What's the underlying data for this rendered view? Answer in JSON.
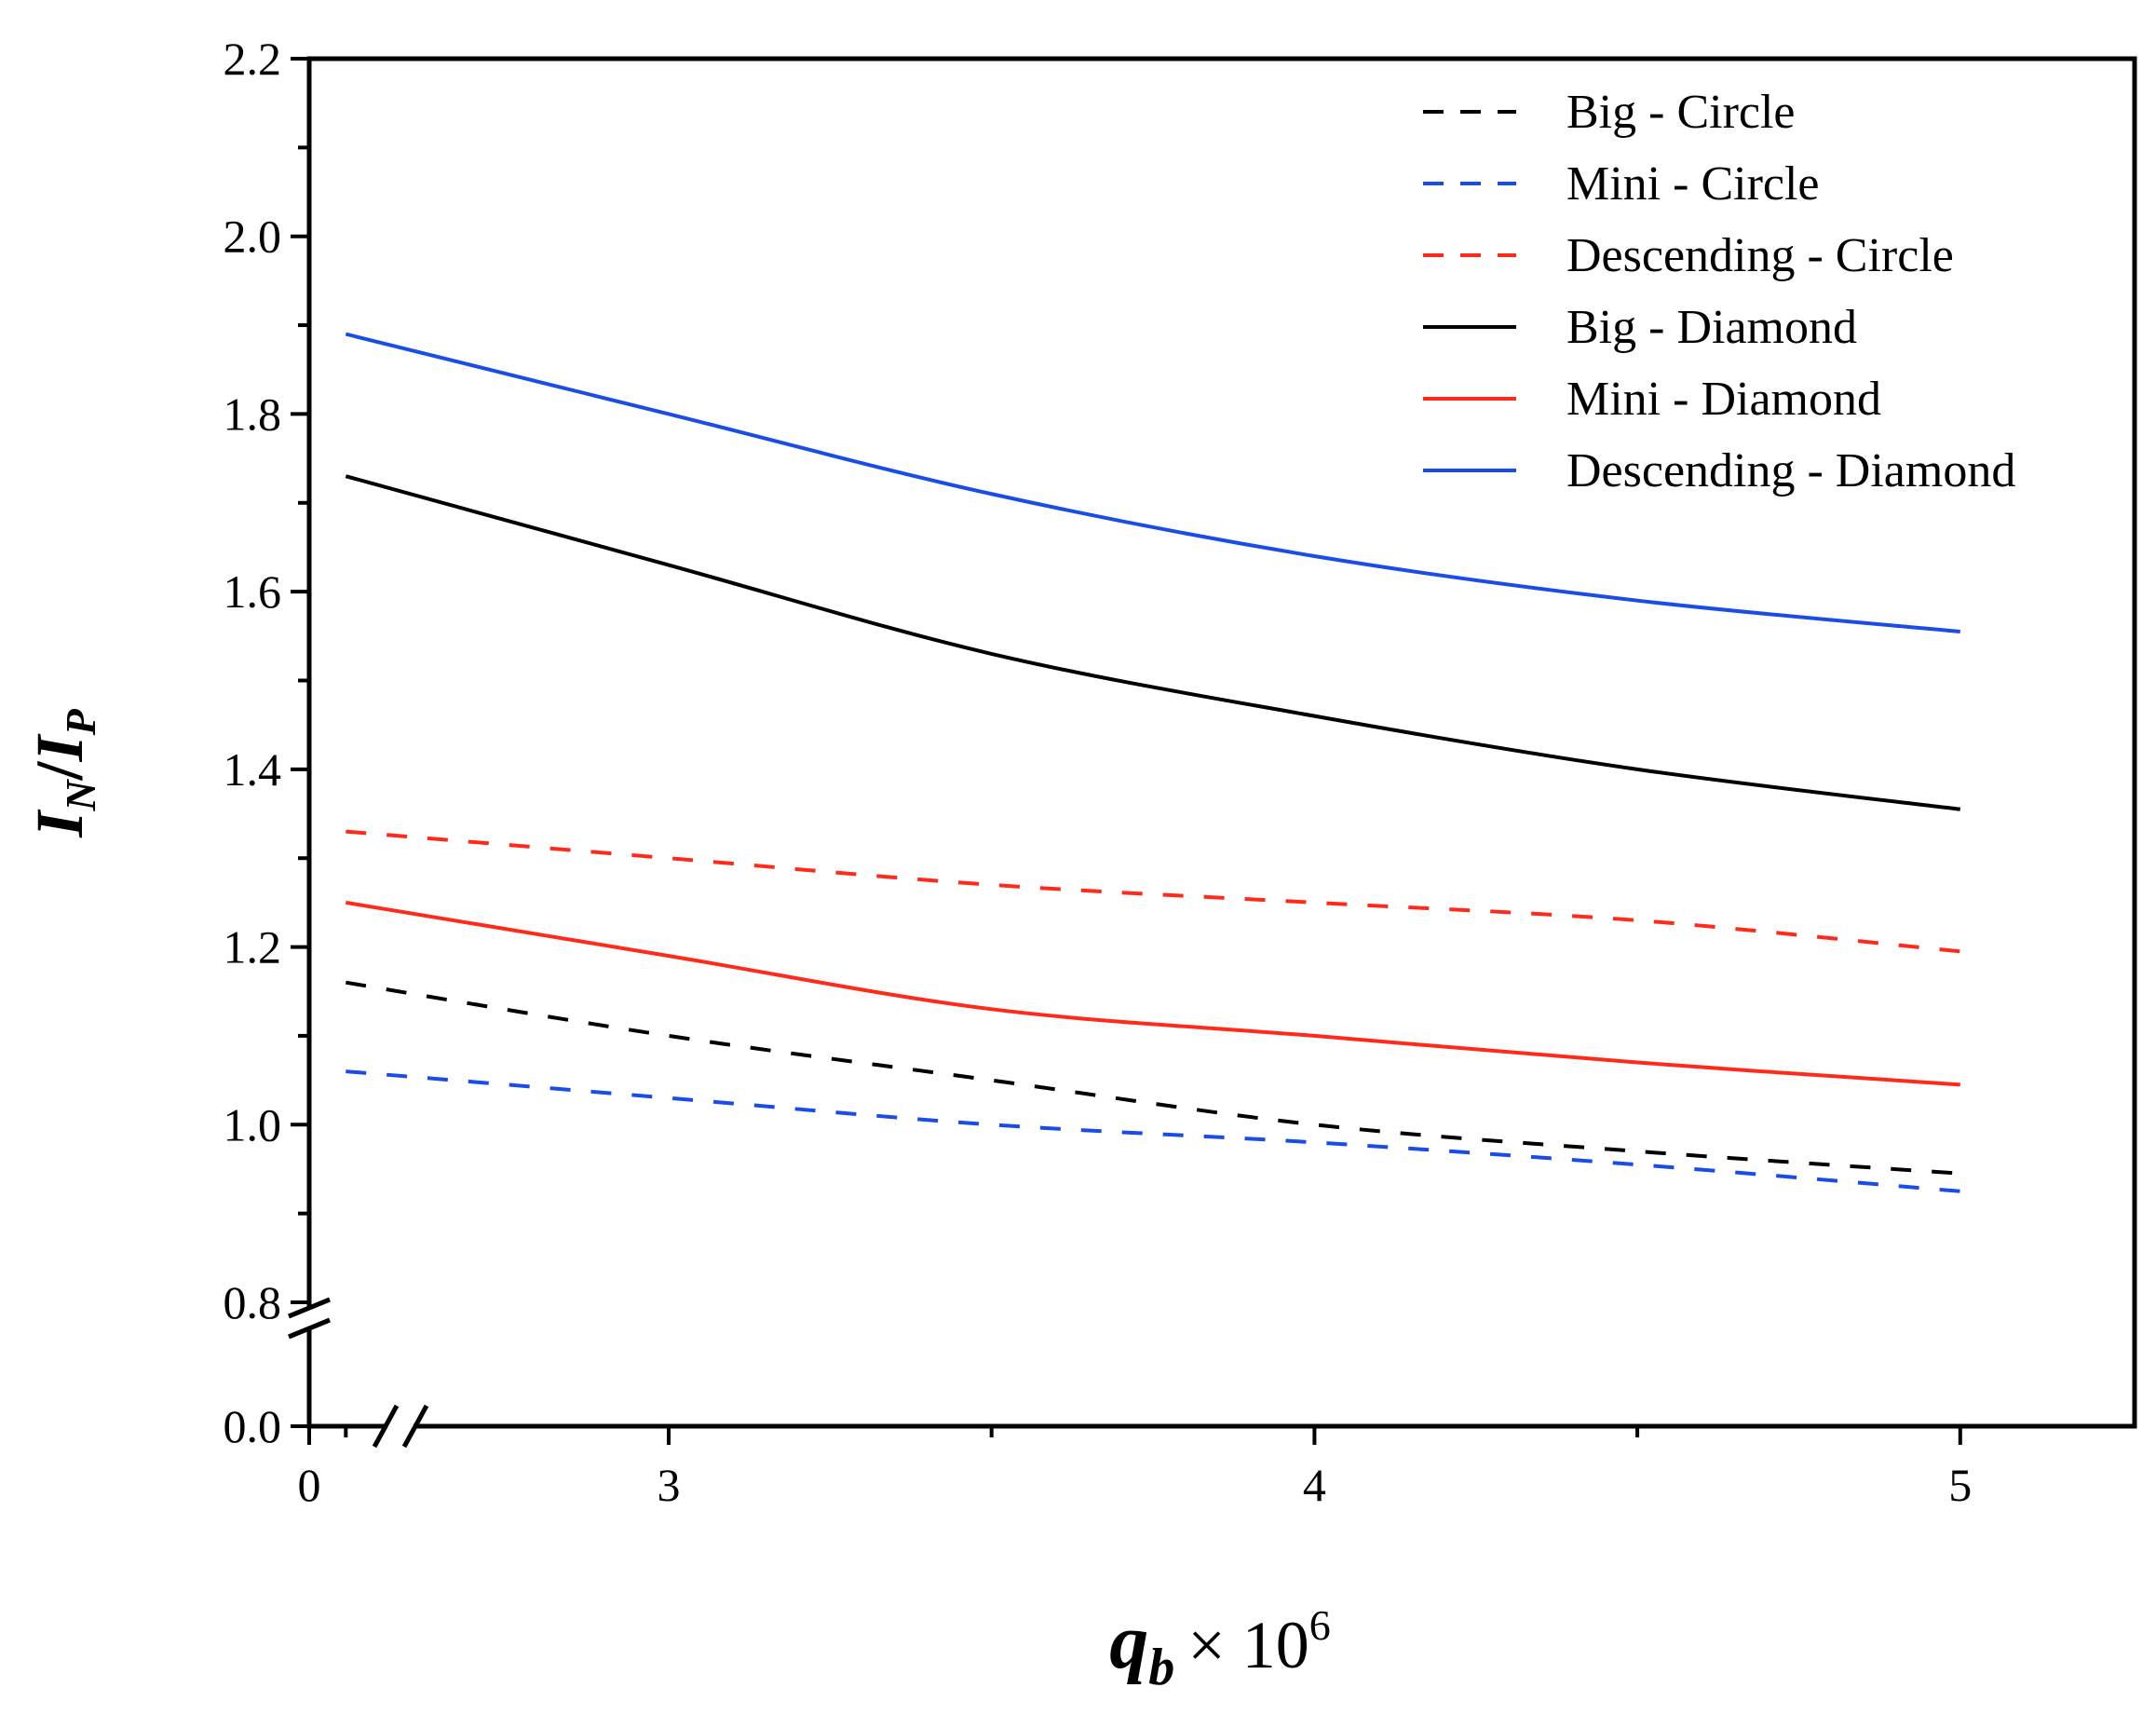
{
  "chart_data": {
    "type": "line",
    "title": "",
    "xlabel": {
      "main": "q",
      "sub": "b",
      "suffix": "× 10",
      "exp": "6"
    },
    "ylabel": {
      "i1": "I",
      "s1": "N",
      "slash": "/",
      "i2": "I",
      "s2": "P"
    },
    "xlim": [
      2.7,
      5.27
    ],
    "ylim_upper": [
      0.8,
      2.2
    ],
    "ylim_lower": [
      0.0,
      0.8
    ],
    "x_ticks": [
      {
        "value": 0,
        "label": "0"
      },
      {
        "value": 3,
        "label": "3"
      },
      {
        "value": 4,
        "label": "4"
      },
      {
        "value": 5,
        "label": "5"
      }
    ],
    "y_ticks": [
      {
        "value": 0.0,
        "label": "0.0"
      },
      {
        "value": 0.8,
        "label": "0.8"
      },
      {
        "value": 1.0,
        "label": "1.0"
      },
      {
        "value": 1.2,
        "label": "1.2"
      },
      {
        "value": 1.4,
        "label": "1.4"
      },
      {
        "value": 1.6,
        "label": "1.6"
      },
      {
        "value": 1.8,
        "label": "1.8"
      },
      {
        "value": 2.0,
        "label": "2.0"
      },
      {
        "value": 2.2,
        "label": "2.2"
      }
    ],
    "axis_break": {
      "x": true,
      "y": true
    },
    "legend_position": "top-right",
    "x": [
      2.5,
      3.0,
      3.5,
      4.0,
      4.5,
      5.0
    ],
    "series": [
      {
        "name": "Big - Circle",
        "style": "dashed",
        "color": "#000000",
        "values": [
          1.16,
          1.1,
          1.05,
          1.0,
          0.97,
          0.945
        ]
      },
      {
        "name": "Mini - Circle",
        "style": "dashed",
        "color": "#1a4de6",
        "values": [
          1.06,
          1.03,
          1.0,
          0.98,
          0.955,
          0.925
        ]
      },
      {
        "name": "Descending - Circle",
        "style": "dashed",
        "color": "#ff2a1a",
        "values": [
          1.33,
          1.3,
          1.27,
          1.25,
          1.23,
          1.195
        ]
      },
      {
        "name": "Big - Diamond",
        "style": "solid",
        "color": "#000000",
        "values": [
          1.73,
          1.63,
          1.53,
          1.46,
          1.4,
          1.355
        ]
      },
      {
        "name": "Mini - Diamond",
        "style": "solid",
        "color": "#ff2a1a",
        "values": [
          1.25,
          1.19,
          1.13,
          1.1,
          1.07,
          1.045
        ]
      },
      {
        "name": "Descending - Diamond",
        "style": "solid",
        "color": "#1a4de6",
        "values": [
          1.89,
          1.8,
          1.71,
          1.64,
          1.59,
          1.555
        ]
      }
    ]
  }
}
